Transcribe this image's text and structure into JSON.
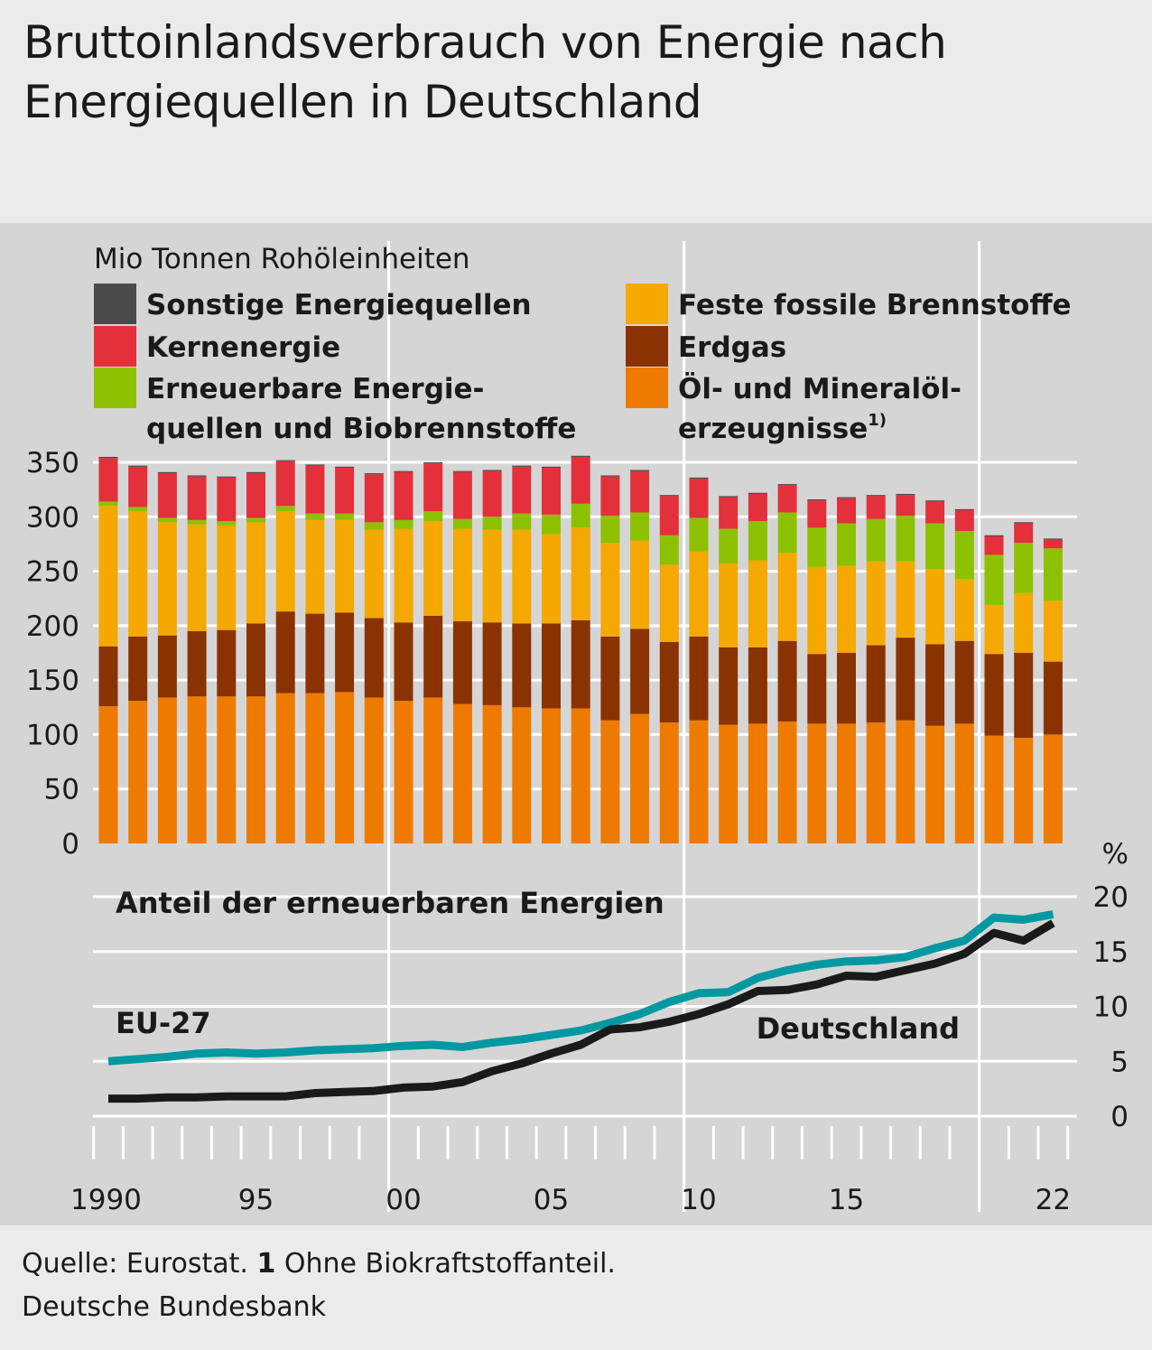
{
  "title": "Bruttoinlandsverbrauch von Energie nach Energiequellen in Deutschland",
  "footer": {
    "source_prefix": "Quelle: Eurostat.",
    "note_number": "1",
    "note_text": "Ohne Biokraftstoffanteil.",
    "publisher": "Deutsche Bundesbank"
  },
  "chart_data": [
    {
      "type": "bar",
      "stacked": true,
      "ylabel": "Mio Tonnen Rohöleinheiten",
      "ylim": [
        0,
        350
      ],
      "yticks": [
        0,
        50,
        100,
        150,
        200,
        250,
        300,
        350
      ],
      "x": [
        1990,
        1991,
        1992,
        1993,
        1994,
        1995,
        1996,
        1997,
        1998,
        1999,
        2000,
        2001,
        2002,
        2003,
        2004,
        2005,
        2006,
        2007,
        2008,
        2009,
        2010,
        2011,
        2012,
        2013,
        2014,
        2015,
        2016,
        2017,
        2018,
        2019,
        2020,
        2021,
        2022
      ],
      "xtick_labels": [
        {
          "year": 1990,
          "label": "1990"
        },
        {
          "year": 1995,
          "label": "95"
        },
        {
          "year": 2000,
          "label": "00"
        },
        {
          "year": 2005,
          "label": "05"
        },
        {
          "year": 2010,
          "label": "10"
        },
        {
          "year": 2015,
          "label": "15"
        },
        {
          "year": 2022,
          "label": "22"
        }
      ],
      "legend": {
        "placement": "top",
        "entries": [
          {
            "key": "sonstige",
            "lines": [
              "Sonstige Energiequellen"
            ]
          },
          {
            "key": "kern",
            "lines": [
              "Kernenergie"
            ]
          },
          {
            "key": "erneuerbar",
            "lines": [
              "Erneuerbare Energie-",
              "quellen und Biobrennstoffe"
            ]
          },
          {
            "key": "fest",
            "lines": [
              "Feste fossile Brennstoffe"
            ]
          },
          {
            "key": "erdgas",
            "lines": [
              "Erdgas"
            ]
          },
          {
            "key": "oel",
            "lines": [
              "Öl- und Mineralöl-",
              "erzeugnisse"
            ],
            "footnote": "1)"
          }
        ]
      },
      "series": [
        {
          "key": "oel",
          "name": "Öl- und Mineralöl-erzeugnisse",
          "color": "#ef7a00",
          "values": [
            126,
            131,
            134,
            135,
            135,
            135,
            138,
            138,
            139,
            134,
            131,
            134,
            128,
            127,
            125,
            124,
            124,
            113,
            119,
            111,
            113,
            109,
            110,
            112,
            110,
            110,
            111,
            113,
            108,
            110,
            99,
            97,
            100
          ]
        },
        {
          "key": "erdgas",
          "name": "Erdgas",
          "color": "#8a3300",
          "values": [
            55,
            59,
            57,
            60,
            61,
            67,
            75,
            73,
            73,
            73,
            72,
            75,
            76,
            76,
            77,
            78,
            81,
            77,
            78,
            74,
            77,
            71,
            70,
            74,
            64,
            65,
            71,
            76,
            75,
            76,
            75,
            78,
            67
          ]
        },
        {
          "key": "fest",
          "name": "Feste fossile Brennstoffe",
          "color": "#f5a800",
          "values": [
            129,
            115,
            104,
            98,
            96,
            93,
            92,
            86,
            85,
            81,
            86,
            87,
            85,
            85,
            86,
            82,
            85,
            86,
            81,
            71,
            78,
            77,
            80,
            81,
            80,
            80,
            77,
            70,
            69,
            57,
            45,
            55,
            56
          ]
        },
        {
          "key": "erneuerbar",
          "name": "Erneuerbare Energiequellen und Biobrennstoffe",
          "color": "#8dc100",
          "values": [
            4,
            4,
            4,
            4,
            4,
            4,
            5,
            6,
            6,
            7,
            8,
            9,
            9,
            12,
            15,
            18,
            22,
            25,
            26,
            27,
            31,
            32,
            36,
            37,
            36,
            39,
            39,
            42,
            42,
            44,
            46,
            46,
            48
          ]
        },
        {
          "key": "kern",
          "name": "Kernenergie",
          "color": "#e3303b",
          "values": [
            40,
            37,
            41,
            40,
            40,
            41,
            41,
            44,
            42,
            44,
            44,
            44,
            43,
            42,
            43,
            43,
            43,
            36,
            38,
            36,
            36,
            29,
            25,
            25,
            25,
            23,
            21,
            19,
            20,
            19,
            17,
            18,
            8
          ]
        },
        {
          "key": "sonstige",
          "name": "Sonstige Energiequellen",
          "color": "#4a4a4a",
          "values": [
            1,
            1,
            1,
            1,
            1,
            1,
            1,
            1,
            1,
            1,
            1,
            1,
            1,
            1,
            1,
            1,
            1,
            1,
            1,
            1,
            1,
            1,
            1,
            1,
            1,
            1,
            1,
            1,
            1,
            1,
            1,
            1,
            1
          ]
        }
      ]
    },
    {
      "type": "line",
      "title": "Anteil der erneuerbaren Energien",
      "ylabel": "%",
      "ylim": [
        0,
        20
      ],
      "yticks": [
        0,
        5,
        10,
        15,
        20
      ],
      "x": [
        1990,
        1991,
        1992,
        1993,
        1994,
        1995,
        1996,
        1997,
        1998,
        1999,
        2000,
        2001,
        2002,
        2003,
        2004,
        2005,
        2006,
        2007,
        2008,
        2009,
        2010,
        2011,
        2012,
        2013,
        2014,
        2015,
        2016,
        2017,
        2018,
        2019,
        2020,
        2021,
        2022
      ],
      "series": [
        {
          "key": "eu",
          "name": "EU-27",
          "color": "#0098a1",
          "values": [
            5.0,
            5.2,
            5.4,
            5.7,
            5.8,
            5.7,
            5.8,
            6.0,
            6.1,
            6.2,
            6.4,
            6.5,
            6.3,
            6.7,
            7.0,
            7.4,
            7.8,
            8.5,
            9.3,
            10.4,
            11.2,
            11.3,
            12.6,
            13.3,
            13.8,
            14.1,
            14.2,
            14.5,
            15.3,
            16.0,
            18.1,
            17.9,
            18.4
          ]
        },
        {
          "key": "de",
          "name": "Deutschland",
          "color": "#1a1a1a",
          "values": [
            1.6,
            1.6,
            1.7,
            1.7,
            1.8,
            1.8,
            1.8,
            2.1,
            2.2,
            2.3,
            2.6,
            2.7,
            3.1,
            4.1,
            4.8,
            5.7,
            6.5,
            7.9,
            8.1,
            8.6,
            9.3,
            10.2,
            11.4,
            11.5,
            12.0,
            12.8,
            12.7,
            13.3,
            13.9,
            14.8,
            16.7,
            16.0,
            17.6
          ]
        }
      ],
      "labels": {
        "eu": "EU-27",
        "de": "Deutschland"
      }
    }
  ]
}
